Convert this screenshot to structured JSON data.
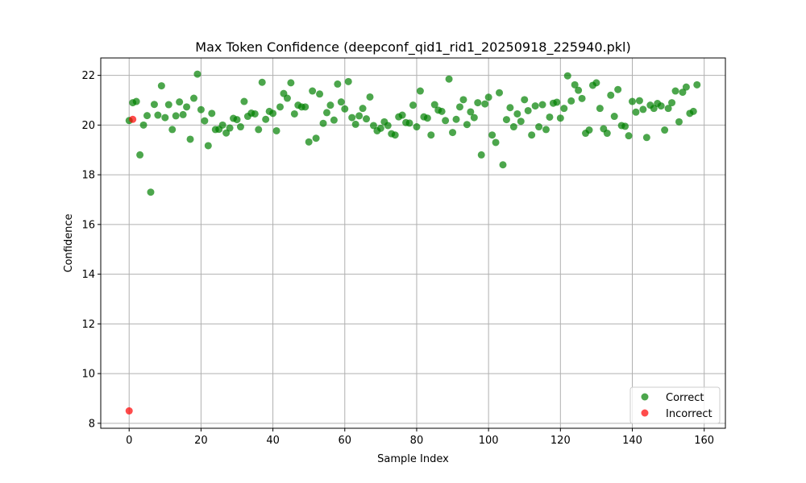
{
  "chart_data": {
    "type": "scatter",
    "title": "Max Token Confidence (deepconf_qid1_rid1_20250918_225940.pkl)",
    "xlabel": "Sample Index",
    "ylabel": "Confidence",
    "xlim": [
      -7.9,
      165.9
    ],
    "ylim": [
      7.8,
      22.7
    ],
    "xticks": [
      0,
      20,
      40,
      60,
      80,
      100,
      120,
      140,
      160
    ],
    "yticks": [
      8,
      10,
      12,
      14,
      16,
      18,
      20,
      22
    ],
    "grid": true,
    "legend_position": "lower-right",
    "series": [
      {
        "name": "Correct",
        "color": "#008000",
        "points": [
          [
            0,
            20.18
          ],
          [
            1,
            20.9
          ],
          [
            2,
            20.95
          ],
          [
            3,
            18.8
          ],
          [
            4,
            20.0
          ],
          [
            5,
            20.38
          ],
          [
            6,
            17.3
          ],
          [
            7,
            20.83
          ],
          [
            8,
            20.4
          ],
          [
            9,
            21.58
          ],
          [
            10,
            20.3
          ],
          [
            11,
            20.82
          ],
          [
            12,
            19.82
          ],
          [
            13,
            20.37
          ],
          [
            14,
            20.93
          ],
          [
            15,
            20.42
          ],
          [
            16,
            20.73
          ],
          [
            17,
            19.43
          ],
          [
            18,
            21.08
          ],
          [
            19,
            22.05
          ],
          [
            20,
            20.62
          ],
          [
            21,
            20.17
          ],
          [
            22,
            19.17
          ],
          [
            23,
            20.47
          ],
          [
            24,
            19.82
          ],
          [
            25,
            19.83
          ],
          [
            26,
            20.0
          ],
          [
            27,
            19.68
          ],
          [
            28,
            19.88
          ],
          [
            29,
            20.27
          ],
          [
            30,
            20.22
          ],
          [
            31,
            19.93
          ],
          [
            32,
            20.95
          ],
          [
            33,
            20.35
          ],
          [
            34,
            20.48
          ],
          [
            35,
            20.45
          ],
          [
            36,
            19.82
          ],
          [
            37,
            21.72
          ],
          [
            38,
            20.23
          ],
          [
            39,
            20.55
          ],
          [
            40,
            20.47
          ],
          [
            41,
            19.77
          ],
          [
            42,
            20.73
          ],
          [
            43,
            21.27
          ],
          [
            44,
            21.08
          ],
          [
            45,
            21.7
          ],
          [
            46,
            20.45
          ],
          [
            47,
            20.8
          ],
          [
            48,
            20.73
          ],
          [
            49,
            20.73
          ],
          [
            50,
            19.32
          ],
          [
            51,
            21.37
          ],
          [
            52,
            19.47
          ],
          [
            53,
            21.25
          ],
          [
            54,
            20.07
          ],
          [
            55,
            20.5
          ],
          [
            56,
            20.8
          ],
          [
            57,
            20.2
          ],
          [
            58,
            21.65
          ],
          [
            59,
            20.93
          ],
          [
            60,
            20.65
          ],
          [
            61,
            21.75
          ],
          [
            62,
            20.3
          ],
          [
            63,
            20.03
          ],
          [
            64,
            20.37
          ],
          [
            65,
            20.67
          ],
          [
            66,
            20.25
          ],
          [
            67,
            21.13
          ],
          [
            68,
            19.98
          ],
          [
            69,
            19.77
          ],
          [
            70,
            19.87
          ],
          [
            71,
            20.13
          ],
          [
            72,
            19.98
          ],
          [
            73,
            19.65
          ],
          [
            74,
            19.6
          ],
          [
            75,
            20.33
          ],
          [
            76,
            20.4
          ],
          [
            77,
            20.1
          ],
          [
            78,
            20.08
          ],
          [
            79,
            20.8
          ],
          [
            80,
            19.93
          ],
          [
            81,
            21.37
          ],
          [
            82,
            20.33
          ],
          [
            83,
            20.28
          ],
          [
            84,
            19.6
          ],
          [
            85,
            20.82
          ],
          [
            86,
            20.6
          ],
          [
            87,
            20.55
          ],
          [
            88,
            20.18
          ],
          [
            89,
            21.85
          ],
          [
            90,
            19.7
          ],
          [
            91,
            20.23
          ],
          [
            92,
            20.73
          ],
          [
            93,
            21.02
          ],
          [
            94,
            20.02
          ],
          [
            95,
            20.53
          ],
          [
            96,
            20.3
          ],
          [
            97,
            20.9
          ],
          [
            98,
            18.8
          ],
          [
            99,
            20.85
          ],
          [
            100,
            21.12
          ],
          [
            101,
            19.6
          ],
          [
            102,
            19.3
          ],
          [
            103,
            21.3
          ],
          [
            104,
            18.4
          ],
          [
            105,
            20.22
          ],
          [
            106,
            20.7
          ],
          [
            107,
            19.93
          ],
          [
            108,
            20.45
          ],
          [
            109,
            20.15
          ],
          [
            110,
            21.02
          ],
          [
            111,
            20.58
          ],
          [
            112,
            19.6
          ],
          [
            113,
            20.77
          ],
          [
            114,
            19.93
          ],
          [
            115,
            20.82
          ],
          [
            116,
            19.82
          ],
          [
            117,
            20.32
          ],
          [
            118,
            20.88
          ],
          [
            119,
            20.92
          ],
          [
            120,
            20.28
          ],
          [
            121,
            20.67
          ],
          [
            122,
            21.98
          ],
          [
            123,
            20.97
          ],
          [
            124,
            21.62
          ],
          [
            125,
            21.4
          ],
          [
            126,
            21.07
          ],
          [
            127,
            19.67
          ],
          [
            128,
            19.8
          ],
          [
            129,
            21.6
          ],
          [
            130,
            21.7
          ],
          [
            131,
            20.67
          ],
          [
            132,
            19.85
          ],
          [
            133,
            19.67
          ],
          [
            134,
            21.2
          ],
          [
            135,
            20.35
          ],
          [
            136,
            21.43
          ],
          [
            137,
            19.98
          ],
          [
            138,
            19.95
          ],
          [
            139,
            19.57
          ],
          [
            140,
            20.95
          ],
          [
            141,
            20.52
          ],
          [
            142,
            20.98
          ],
          [
            143,
            20.63
          ],
          [
            144,
            19.5
          ],
          [
            145,
            20.8
          ],
          [
            146,
            20.67
          ],
          [
            147,
            20.87
          ],
          [
            148,
            20.77
          ],
          [
            149,
            19.8
          ],
          [
            150,
            20.67
          ],
          [
            151,
            20.9
          ],
          [
            152,
            21.37
          ],
          [
            153,
            20.13
          ],
          [
            154,
            21.32
          ],
          [
            155,
            21.53
          ],
          [
            156,
            20.47
          ],
          [
            157,
            20.55
          ],
          [
            158,
            21.62
          ]
        ]
      },
      {
        "name": "Incorrect",
        "color": "#ff0000",
        "points": [
          [
            0,
            8.5
          ],
          [
            1,
            20.23
          ]
        ]
      }
    ]
  }
}
